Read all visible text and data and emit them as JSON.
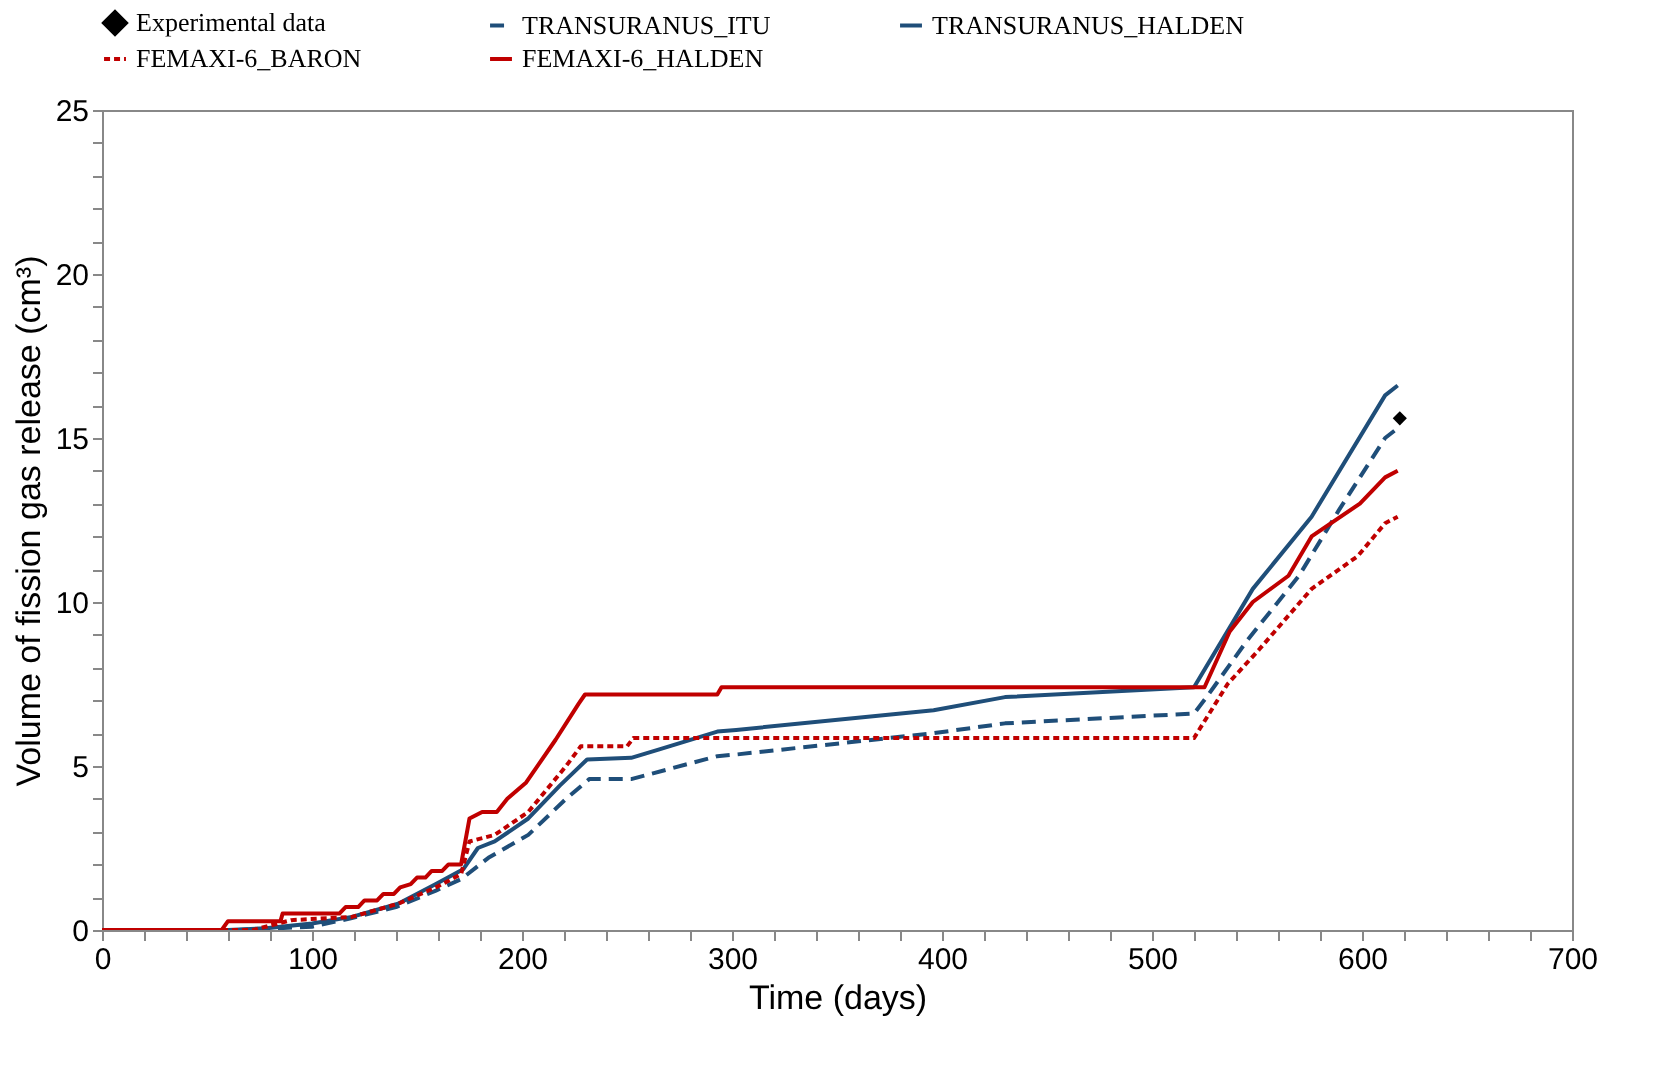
{
  "chart_data": {
    "type": "line",
    "xlabel": "Time (days)",
    "ylabel": "Volume of fission gas release (cm³)",
    "xlim": [
      0,
      700
    ],
    "ylim": [
      0,
      25
    ],
    "xticks": [
      0,
      {
        "value": 20,
        "label": null
      },
      {
        "value": 40,
        "label": null
      },
      {
        "value": 60,
        "label": null
      },
      {
        "value": 80,
        "label": null
      },
      100,
      {
        "value": 120,
        "label": null
      },
      {
        "value": 140,
        "label": null
      },
      {
        "value": 160,
        "label": null
      },
      {
        "value": 180,
        "label": null
      },
      200,
      {
        "value": 220,
        "label": null
      },
      {
        "value": 240,
        "label": null
      },
      {
        "value": 260,
        "label": null
      },
      {
        "value": 280,
        "label": null
      },
      300,
      {
        "value": 320,
        "label": null
      },
      {
        "value": 340,
        "label": null
      },
      {
        "value": 360,
        "label": null
      },
      {
        "value": 380,
        "label": null
      },
      400,
      {
        "value": 420,
        "label": null
      },
      {
        "value": 440,
        "label": null
      },
      {
        "value": 460,
        "label": null
      },
      {
        "value": 480,
        "label": null
      },
      500,
      {
        "value": 520,
        "label": null
      },
      {
        "value": 540,
        "label": null
      },
      {
        "value": 560,
        "label": null
      },
      {
        "value": 580,
        "label": null
      },
      600,
      {
        "value": 620,
        "label": null
      },
      {
        "value": 640,
        "label": null
      },
      {
        "value": 660,
        "label": null
      },
      {
        "value": 680,
        "label": null
      },
      700
    ],
    "yticks": [
      0,
      {
        "value": 1,
        "label": null
      },
      {
        "value": 2,
        "label": null
      },
      {
        "value": 3,
        "label": null
      },
      {
        "value": 4,
        "label": null
      },
      5,
      {
        "value": 6,
        "label": null
      },
      {
        "value": 7,
        "label": null
      },
      {
        "value": 8,
        "label": null
      },
      {
        "value": 9,
        "label": null
      },
      10,
      {
        "value": 11,
        "label": null
      },
      {
        "value": 12,
        "label": null
      },
      {
        "value": 13,
        "label": null
      },
      {
        "value": 14,
        "label": null
      },
      15,
      {
        "value": 16,
        "label": null
      },
      {
        "value": 17,
        "label": null
      },
      {
        "value": 18,
        "label": null
      },
      {
        "value": 19,
        "label": null
      },
      20,
      {
        "value": 21,
        "label": null
      },
      {
        "value": 22,
        "label": null
      },
      {
        "value": 23,
        "label": null
      },
      {
        "value": 24,
        "label": null
      },
      25
    ],
    "grid": false,
    "legend": "top",
    "series": [
      {
        "name": "Experimental data",
        "type": "scatter",
        "marker": "diamond",
        "color": "#000000",
        "x": [
          618
        ],
        "values": [
          15.6
        ]
      },
      {
        "name": "TRANSURANUS_ITU",
        "line_style": "dashed",
        "color": "#1f4e79",
        "x": [
          0,
          65,
          100,
          118,
          140,
          159,
          171,
          184,
          203,
          221,
          232,
          252,
          293,
          302,
          396,
          430,
          520,
          526,
          545,
          570,
          589,
          611,
          617
        ],
        "values": [
          0,
          0,
          0.1,
          0.35,
          0.7,
          1.2,
          1.55,
          2.2,
          2.9,
          4.0,
          4.6,
          4.6,
          5.3,
          5.35,
          6.0,
          6.3,
          6.6,
          7.1,
          8.8,
          10.8,
          12.8,
          15.0,
          15.3
        ]
      },
      {
        "name": "TRANSURANUS_HALDEN",
        "line_style": "solid",
        "color": "#1f4e79",
        "x": [
          0,
          60,
          78,
          100,
          119,
          141,
          159,
          172,
          179,
          187,
          203,
          218,
          231,
          252,
          265,
          293,
          302,
          396,
          430,
          520,
          548,
          576,
          611,
          617
        ],
        "values": [
          0,
          0,
          0.05,
          0.2,
          0.4,
          0.8,
          1.4,
          1.85,
          2.5,
          2.7,
          3.4,
          4.4,
          5.2,
          5.25,
          5.5,
          6.05,
          6.1,
          6.7,
          7.1,
          7.4,
          10.4,
          12.6,
          16.3,
          16.6
        ]
      },
      {
        "name": "FEMAXI-6_BARON",
        "line_style": "dotted",
        "color": "#c00000",
        "x": [
          0,
          72,
          90,
          119,
          141,
          159,
          171,
          175,
          187,
          203,
          221,
          228,
          250,
          253,
          520,
          536,
          551,
          576,
          598,
          611,
          617
        ],
        "values": [
          0,
          0,
          0.3,
          0.4,
          0.8,
          1.3,
          1.7,
          2.7,
          2.9,
          3.6,
          5.0,
          5.6,
          5.6,
          5.85,
          5.85,
          7.5,
          8.55,
          10.4,
          11.4,
          12.4,
          12.6
        ]
      },
      {
        "name": "FEMAXI-6_HALDEN",
        "line_style": "solid",
        "color": "#c00000",
        "x": [
          0,
          57,
          60,
          85,
          86,
          113,
          116,
          122,
          125,
          131,
          134,
          139,
          142,
          147,
          150,
          154,
          157,
          162,
          165,
          171,
          175,
          181,
          188,
          193,
          202,
          216,
          227,
          230,
          293,
          295,
          525,
          537,
          548,
          565,
          576,
          599,
          611,
          617
        ],
        "values": [
          0,
          0,
          0.27,
          0.27,
          0.5,
          0.5,
          0.7,
          0.7,
          0.9,
          0.9,
          1.1,
          1.1,
          1.3,
          1.4,
          1.6,
          1.6,
          1.8,
          1.8,
          2.0,
          2.0,
          3.4,
          3.6,
          3.6,
          4.0,
          4.5,
          5.8,
          6.9,
          7.18,
          7.18,
          7.4,
          7.4,
          9.1,
          10.0,
          10.8,
          12.0,
          13.0,
          13.8,
          14.0
        ]
      }
    ]
  }
}
